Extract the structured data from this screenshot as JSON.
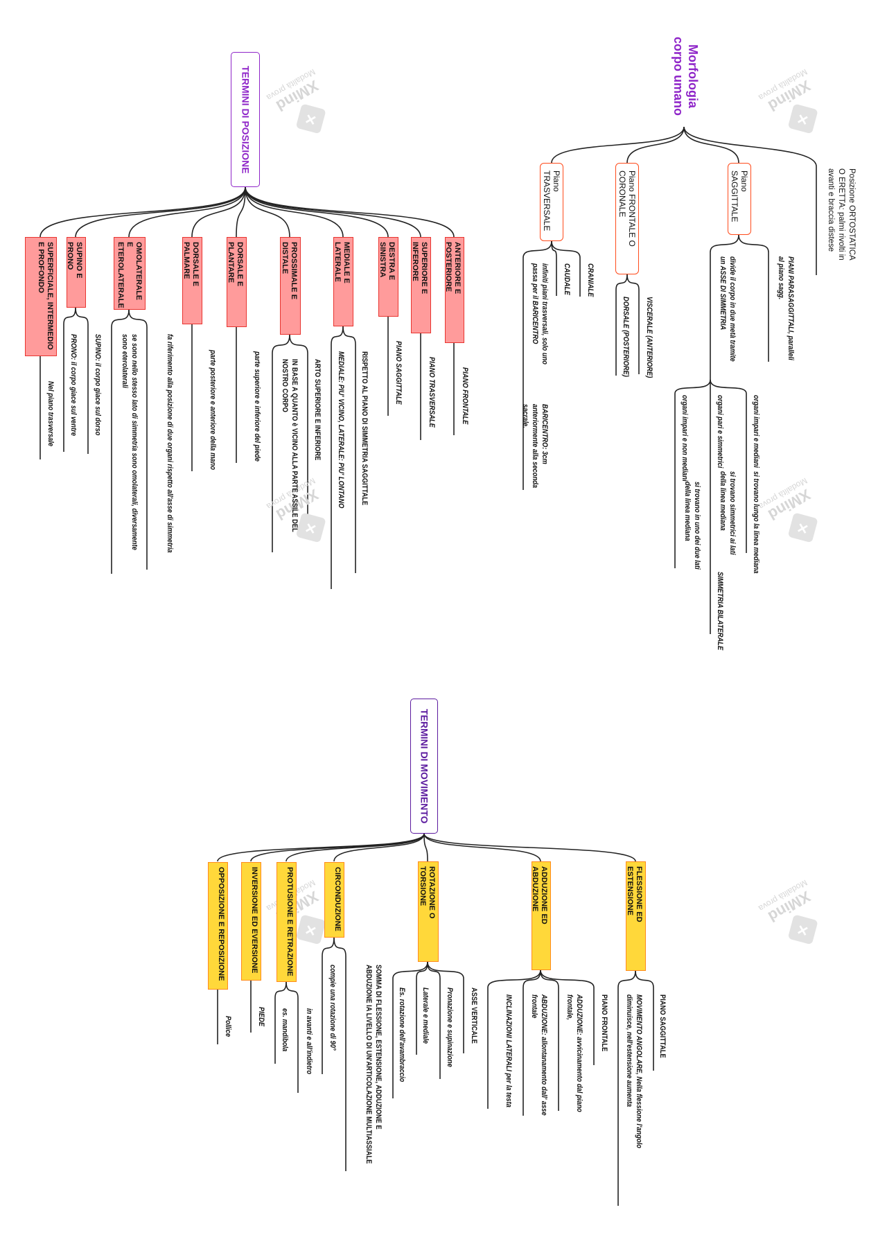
{
  "watermark": {
    "brand": "XMind",
    "subtitle": "Modalità prova"
  },
  "morfologia": {
    "title": "Morfologia corpo umano",
    "note": "Posizione ORTOSTATICA O ERETTA: palmi rivolti in avanti e braccia distese",
    "sagittale": {
      "label": "Piano SAGGITTALE",
      "parasagittali": "PIANI PARASAGGITTALI, paralleli al piano sagg.",
      "divide": "divide il corpo in due metà tramite un ASSE DI SIMMETRIA",
      "impari_mediani": "organi impari e mediani",
      "impari_mediani_desc": "si trovano lungo la linea mediana",
      "pari": "organi pari e simmetrici",
      "pari_desc": "si trovano simmetrici ai lati della linea mediana",
      "pari_term": "SIMMETRIA BILATERALE",
      "impari_non_mediani": "organi impari e non mediani",
      "impari_non_mediani_desc": "si trovano in uno dei due lati della linea mediana"
    },
    "frontale": {
      "label": "Piano FRONTALE O CORONALE",
      "viscerale": "VISCERALE (ANTERIORE)",
      "dorsale": "DORSALE (POSTERIORE)"
    },
    "trasversale": {
      "label": "Piano TRASVERSALE",
      "craniale": "CRANIALE",
      "caudale": "CAUDALE",
      "infiniti": "infiniti piani trasversali, solo uno passa per il BARICENTRO",
      "baricentro": "BARICENTRO: 3cm anteriormente alla seconda sacrale."
    }
  },
  "posizione": {
    "title": "TERMINI DI POSIZIONE",
    "items": [
      {
        "label": "SUPERFICIALE, INTERMEDIO E PROFONDO",
        "children": [
          "Nel piano trasversale"
        ]
      },
      {
        "label": "SUPINO E PRONO",
        "children": [
          "PRONO: il corpo giace sul ventre",
          "SUPINO: il corpo giace sul dorso"
        ]
      },
      {
        "label": "OMOLATERALE E ETEROLATERALE",
        "children": [
          "se sono nello stesso lato di simmetria sono omolaterali, diversamente sono eterolaterali",
          "fa riferimento alla posizione di due organi rispetto all'asse di simmetria"
        ]
      },
      {
        "label": "DORSALE E PALMARE",
        "children": [
          "parte posteriore e anteriore della mano"
        ]
      },
      {
        "label": "DORSALE E PLANTARE",
        "children": [
          "parte superiore e inferiore del piede"
        ]
      },
      {
        "label": "PROSSIMALE E DISTALE",
        "children": [
          "IN BASE A QUANTO è VICINO ALLA PARTE ASSILE DEL NOSTRO CORPO",
          "ARTO SUPERIORE E INFERIORE"
        ]
      },
      {
        "label": "MEDIALE E LATERALE",
        "children": [
          "MEDIALE: PIU' VICINO, LATERALE: PIU' LONTANO",
          "RISPETTO AL PIANO DI SIMMETRIA SAGGITTALE"
        ]
      },
      {
        "label": "DESTRA E SINISTRA",
        "children": [
          "PIANO SAGGITTALE"
        ]
      },
      {
        "label": "SUPERIORE E INFERORE",
        "children": [
          "PIANO TRASVERSALE"
        ]
      },
      {
        "label": "ANTERIORE E POSTERIORE",
        "children": [
          "PIANO FRONTALE"
        ]
      }
    ]
  },
  "movimento": {
    "title": "TERMINI DI MOVIMENTO",
    "items": [
      {
        "label": "OPPOSIZIONE E REPOSIZIONE",
        "children": [
          "Pollice"
        ]
      },
      {
        "label": "INVERSIONE ED EVERSIONE",
        "children": [
          "PIEDE"
        ]
      },
      {
        "label": "PROTUSIONE E RETRAZIONE",
        "children": [
          "es. mandibola",
          "in avanti e all'indietro"
        ]
      },
      {
        "label": "CIRCONDUZIONE",
        "children": [
          "compie una rotazione di 90°",
          "SOMMA DI FLESSIONE, ESTENSIONE, ADDUZIONE E ABDUZIONE IA LIVELLO DI UN'ARTICOLAZIONE MULTIASSIALE"
        ]
      },
      {
        "label": "ROTAZIONE O TORSIONE",
        "children": [
          "Es. rotazione dell'avambraccio",
          "Laterale e mediale",
          "Pronazione e supinazione",
          "ASSE VERTICALE"
        ]
      },
      {
        "label": "ADDUZIONE ED ABDUZIONE",
        "children": [
          "INCLINAZIONI LATERALI per la testa",
          "ABDUZIONE: allontanamento dall' asse frontale",
          "ADDUZIONE: avvicinamento dal piano frontale,",
          "PIANO FRONTALE"
        ]
      },
      {
        "label": "FLESSIONE ED ESTENSIONE",
        "children": [
          "MOVIMENTO ANGOLARE, Nella flessione l'angolo diminuisce, nell'estensione aumenta",
          "PIANO SAGGITTALE"
        ]
      }
    ]
  },
  "colors": {
    "title_purple": "#8e24c8",
    "movement_title": "#5b1a9e",
    "position_box_fill": "#ff9b9b",
    "position_box_border": "#e8342f",
    "movement_box_fill": "#ffd83a",
    "movement_box_border": "#ff8a1c",
    "plane_border": "#ff4a1a"
  }
}
